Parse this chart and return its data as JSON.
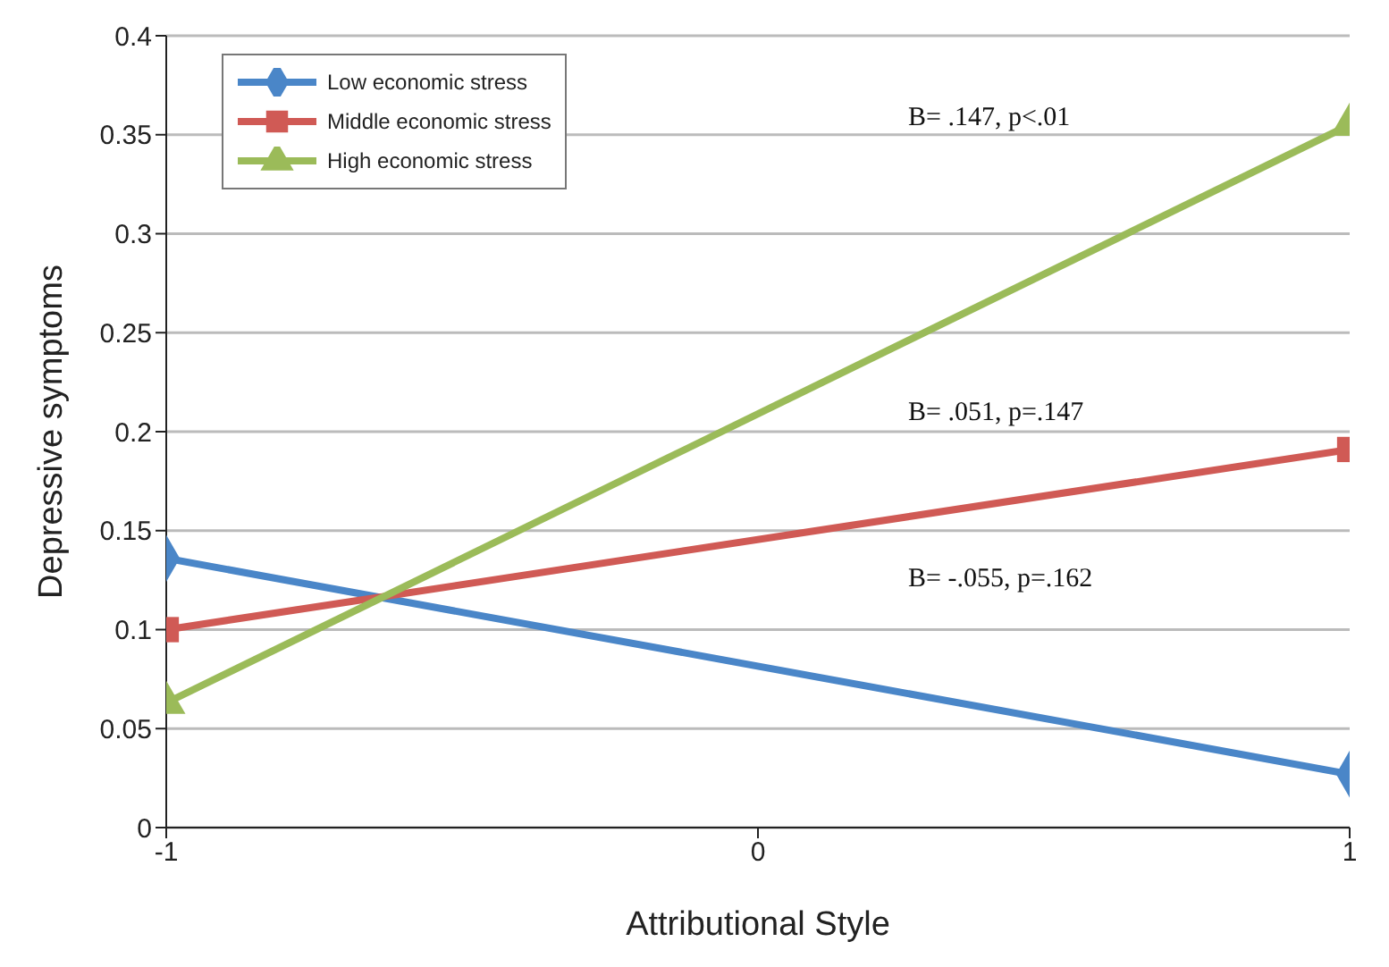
{
  "chart_data": {
    "type": "line",
    "xlabel": "Attributional Style",
    "ylabel": "Depressive  symptoms",
    "x": [
      -1,
      1
    ],
    "xlim": [
      -1,
      1
    ],
    "xticks": [
      -1,
      0,
      1
    ],
    "ylim": [
      0,
      0.4
    ],
    "yticks": [
      0,
      0.05,
      0.1,
      0.15,
      0.2,
      0.25,
      0.3,
      0.35,
      0.4
    ],
    "series": [
      {
        "name": "Low economic stress",
        "color": "#4a86c8",
        "marker": "diamond",
        "values": [
          0.136,
          0.027
        ]
      },
      {
        "name": "Middle economic stress",
        "color": "#d05a55",
        "marker": "square",
        "values": [
          0.1,
          0.191
        ]
      },
      {
        "name": "High economic stress",
        "color": "#9bbb59",
        "marker": "triangle",
        "values": [
          0.063,
          0.355
        ]
      }
    ],
    "annotations": [
      "B= .147, p<.01",
      "B= .051, p=.147",
      "B= -.055, p=.162"
    ],
    "grid": "y",
    "legend": "top left",
    "line_style": "solid"
  }
}
